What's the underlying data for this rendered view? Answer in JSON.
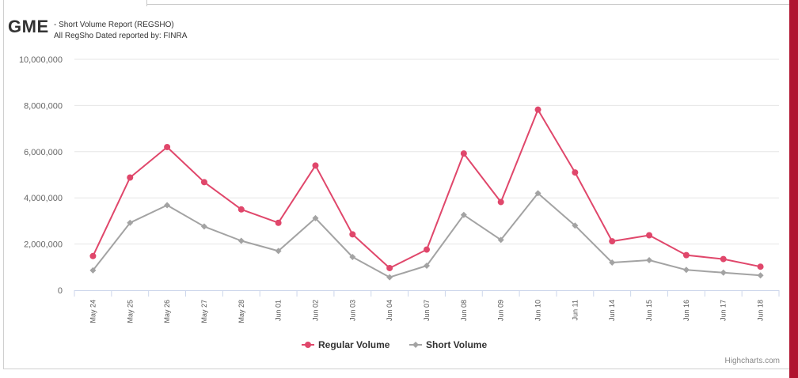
{
  "header": {
    "ticker": "GME",
    "subtitle_line1": "- Short Volume Report  (REGSHO)",
    "subtitle_line2": "All RegSho Dated reported by: FINRA"
  },
  "credit": "Highcharts.com",
  "colors": {
    "regular": "#e0476b",
    "short": "#a3a3a3",
    "accent_bar": "#b0142f"
  },
  "chart_data": {
    "type": "line",
    "categories": [
      "May 24",
      "May 25",
      "May 26",
      "May 27",
      "May 28",
      "Jun 01",
      "Jun 02",
      "Jun 03",
      "Jun 04",
      "Jun 07",
      "Jun 08",
      "Jun 09",
      "Jun 10",
      "Jun 11",
      "Jun 14",
      "Jun 15",
      "Jun 16",
      "Jun 17",
      "Jun 18"
    ],
    "series": [
      {
        "name": "Regular Volume",
        "marker": "circle",
        "values": [
          1480000,
          4880000,
          6200000,
          4680000,
          3500000,
          2920000,
          5400000,
          2420000,
          960000,
          1760000,
          5920000,
          3820000,
          7820000,
          5100000,
          2120000,
          2380000,
          1520000,
          1350000,
          1020000
        ]
      },
      {
        "name": "Short Volume",
        "marker": "diamond",
        "values": [
          860000,
          2920000,
          3680000,
          2760000,
          2140000,
          1700000,
          3120000,
          1440000,
          560000,
          1060000,
          3260000,
          2180000,
          4200000,
          2800000,
          1200000,
          1300000,
          880000,
          760000,
          640000
        ]
      }
    ],
    "y_ticks": [
      "10,000,000",
      "8,000,000",
      "6,000,000",
      "4,000,000",
      "2,000,000",
      "0"
    ],
    "ylim": [
      0,
      10000000
    ],
    "grid": true,
    "legend_position": "bottom-center"
  }
}
